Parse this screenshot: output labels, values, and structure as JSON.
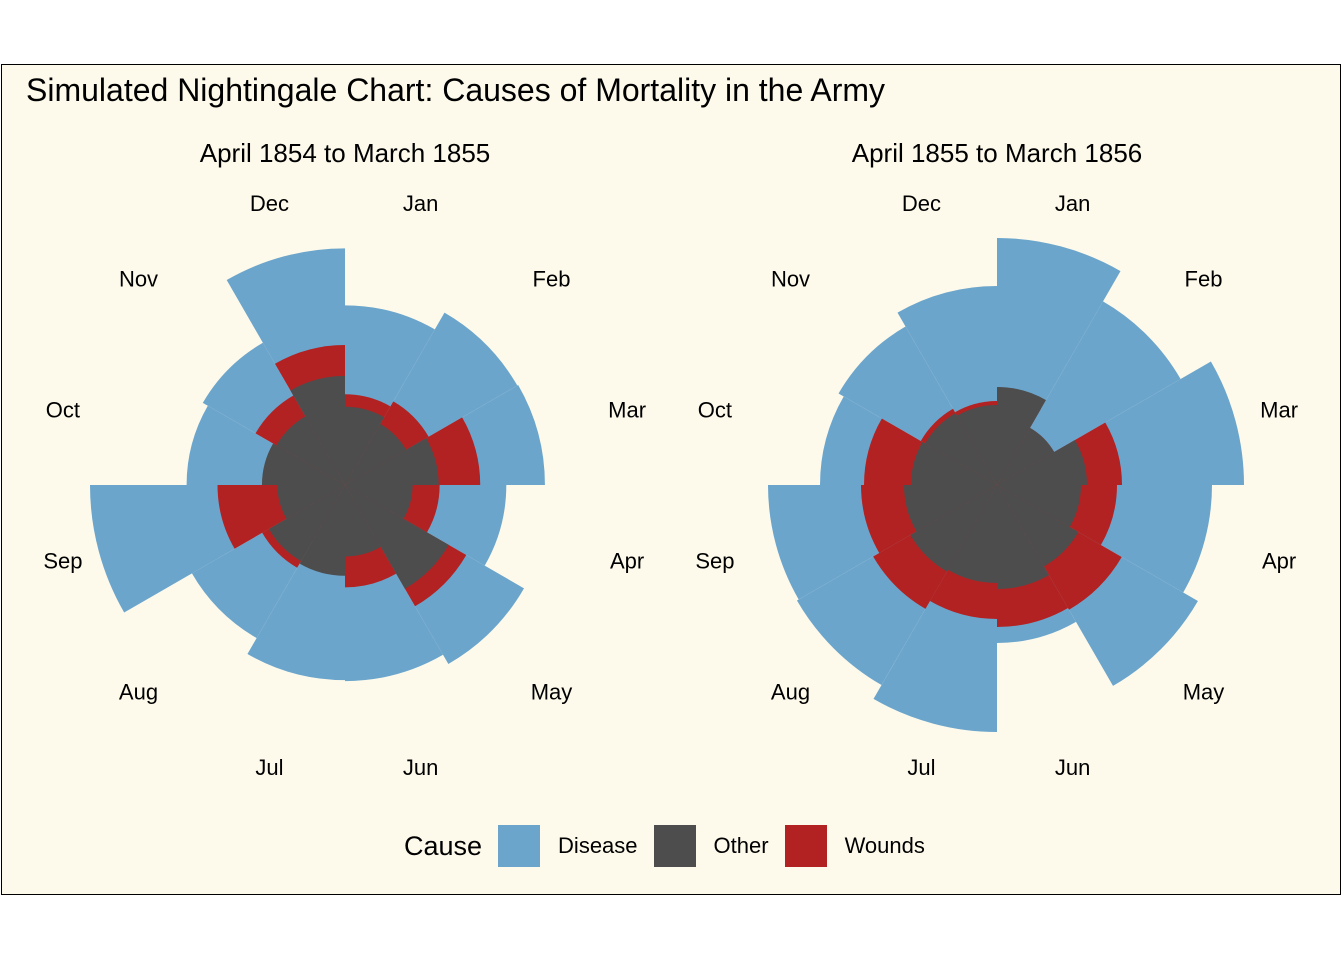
{
  "title": "Simulated Nightingale Chart: Causes of Mortality in the Army",
  "legend": {
    "title": "Cause",
    "items": [
      {
        "label": "Disease",
        "color": "#6ca5cc"
      },
      {
        "label": "Other",
        "color": "#4d4d4d"
      },
      {
        "label": "Wounds",
        "color": "#b22222"
      }
    ]
  },
  "chart_data": [
    {
      "type": "polar-area",
      "title": "April 1854 to March 1855",
      "categories": [
        "Jan",
        "Feb",
        "Mar",
        "Apr",
        "May",
        "Jun",
        "Jul",
        "Aug",
        "Sep",
        "Oct",
        "Nov",
        "Dec"
      ],
      "series": [
        {
          "name": "Disease",
          "color": "#6ca5cc",
          "values": [
            186,
            206,
            207,
            167,
            214,
            203,
            202,
            183,
            264,
            164,
            170,
            245
          ]
        },
        {
          "name": "Wounds",
          "color": "#b22222",
          "values": [
            94,
            100,
            140,
            98,
            145,
            106,
            67,
            99,
            132,
            84,
            107,
            145
          ]
        },
        {
          "name": "Other",
          "color": "#4d4d4d",
          "values": [
            81,
            73,
            97,
            70,
            124,
            74,
            94,
            91,
            70,
            86,
            82,
            113
          ]
        }
      ],
      "rmax": 264
    },
    {
      "type": "polar-area",
      "title": "April 1855 to March 1856",
      "categories": [
        "Jan",
        "Feb",
        "Mar",
        "Apr",
        "May",
        "Jun",
        "Jul",
        "Aug",
        "Sep",
        "Oct",
        "Nov",
        "Dec"
      ],
      "series": [
        {
          "name": "Disease",
          "color": "#6ca5cc",
          "values": [
            247,
            212,
            247,
            215,
            232,
            158,
            247,
            231,
            229,
            177,
            183,
            199
          ]
        },
        {
          "name": "Wounds",
          "color": "#b22222",
          "values": [
            88,
            66,
            125,
            120,
            144,
            142,
            134,
            143,
            136,
            133,
            88,
            84
          ]
        },
        {
          "name": "Other",
          "color": "#4d4d4d",
          "values": [
            98,
            66,
            90,
            84,
            94,
            104,
            98,
            100,
            93,
            86,
            83,
            80
          ]
        }
      ],
      "rmax": 247
    }
  ]
}
